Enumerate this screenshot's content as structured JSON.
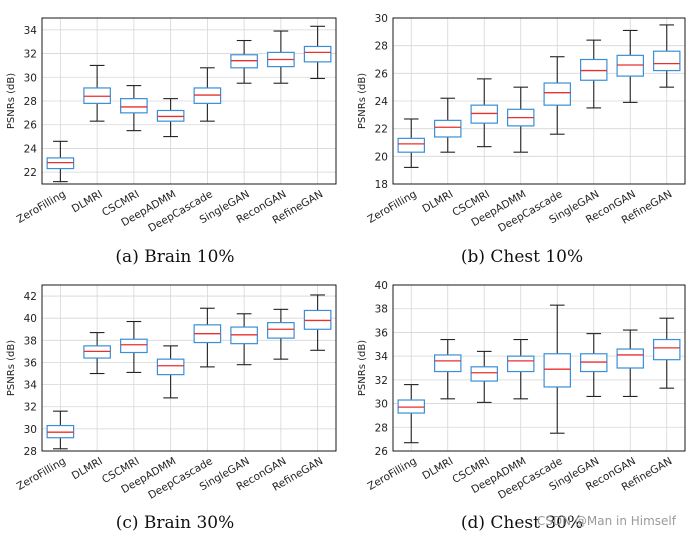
{
  "colors": {
    "box": "#3a8fd8",
    "median": "#e8302f",
    "whisker": "#222222",
    "grid": "#d6d6d6"
  },
  "watermark": "CSDN @Man in Himself",
  "chart_data": [
    {
      "type": "box",
      "caption": "(a) Brain 10%",
      "ylabel": "PSNRs (dB)",
      "ylim": [
        21,
        35
      ],
      "yticks": [
        22,
        24,
        26,
        28,
        30,
        32,
        34
      ],
      "grid": true,
      "categories": [
        "ZeroFilling",
        "DLMRI",
        "CSCMRI",
        "DeepADMM",
        "DeepCascade",
        "SingleGAN",
        "ReconGAN",
        "RefineGAN"
      ],
      "boxes": [
        {
          "min": 21.2,
          "q1": 22.3,
          "median": 22.8,
          "q3": 23.2,
          "max": 24.6
        },
        {
          "min": 26.3,
          "q1": 27.8,
          "median": 28.4,
          "q3": 29.1,
          "max": 31.0
        },
        {
          "min": 25.5,
          "q1": 27.0,
          "median": 27.5,
          "q3": 28.2,
          "max": 29.3
        },
        {
          "min": 25.0,
          "q1": 26.3,
          "median": 26.7,
          "q3": 27.2,
          "max": 28.2
        },
        {
          "min": 26.3,
          "q1": 27.8,
          "median": 28.5,
          "q3": 29.1,
          "max": 30.8
        },
        {
          "min": 29.5,
          "q1": 30.8,
          "median": 31.4,
          "q3": 31.9,
          "max": 33.1
        },
        {
          "min": 29.5,
          "q1": 30.9,
          "median": 31.5,
          "q3": 32.1,
          "max": 33.9
        },
        {
          "min": 29.9,
          "q1": 31.3,
          "median": 32.1,
          "q3": 32.6,
          "max": 34.3
        }
      ]
    },
    {
      "type": "box",
      "caption": "(b) Chest 10%",
      "ylabel": "PSNRs (dB)",
      "ylim": [
        18,
        30
      ],
      "yticks": [
        18,
        20,
        22,
        24,
        26,
        28,
        30
      ],
      "grid": true,
      "categories": [
        "ZeroFilling",
        "DLMRI",
        "CSCMRI",
        "DeepADMM",
        "DeepCascade",
        "SingleGAN",
        "ReconGAN",
        "RefineGAN"
      ],
      "boxes": [
        {
          "min": 19.2,
          "q1": 20.3,
          "median": 20.9,
          "q3": 21.3,
          "max": 22.7
        },
        {
          "min": 20.3,
          "q1": 21.4,
          "median": 22.1,
          "q3": 22.6,
          "max": 24.2
        },
        {
          "min": 20.7,
          "q1": 22.4,
          "median": 23.1,
          "q3": 23.7,
          "max": 25.6
        },
        {
          "min": 20.3,
          "q1": 22.2,
          "median": 22.8,
          "q3": 23.4,
          "max": 25.0
        },
        {
          "min": 21.6,
          "q1": 23.7,
          "median": 24.6,
          "q3": 25.3,
          "max": 27.2
        },
        {
          "min": 23.5,
          "q1": 25.5,
          "median": 26.2,
          "q3": 27.0,
          "max": 28.4
        },
        {
          "min": 23.9,
          "q1": 25.8,
          "median": 26.6,
          "q3": 27.3,
          "max": 29.1
        },
        {
          "min": 25.0,
          "q1": 26.2,
          "median": 26.7,
          "q3": 27.6,
          "max": 29.5
        }
      ]
    },
    {
      "type": "box",
      "caption": "(c) Brain 30%",
      "ylabel": "PSNRs (dB)",
      "ylim": [
        28,
        43
      ],
      "yticks": [
        28,
        30,
        32,
        34,
        36,
        38,
        40,
        42
      ],
      "grid": true,
      "categories": [
        "ZeroFilling",
        "DLMRI",
        "CSCMRI",
        "DeepADMM",
        "DeepCascade",
        "SingleGAN",
        "ReconGAN",
        "RefineGAN"
      ],
      "boxes": [
        {
          "min": 28.2,
          "q1": 29.2,
          "median": 29.7,
          "q3": 30.3,
          "max": 31.6
        },
        {
          "min": 35.0,
          "q1": 36.4,
          "median": 37.0,
          "q3": 37.5,
          "max": 38.7
        },
        {
          "min": 35.1,
          "q1": 36.9,
          "median": 37.6,
          "q3": 38.1,
          "max": 39.7
        },
        {
          "min": 32.8,
          "q1": 34.9,
          "median": 35.7,
          "q3": 36.3,
          "max": 37.5
        },
        {
          "min": 35.6,
          "q1": 37.8,
          "median": 38.6,
          "q3": 39.4,
          "max": 40.9
        },
        {
          "min": 35.8,
          "q1": 37.7,
          "median": 38.5,
          "q3": 39.2,
          "max": 40.4
        },
        {
          "min": 36.3,
          "q1": 38.2,
          "median": 39.0,
          "q3": 39.6,
          "max": 40.8
        },
        {
          "min": 37.1,
          "q1": 39.0,
          "median": 39.8,
          "q3": 40.7,
          "max": 42.1
        }
      ]
    },
    {
      "type": "box",
      "caption": "(d) Chest 30%",
      "ylabel": "PSNRs (dB)",
      "ylim": [
        26,
        40
      ],
      "yticks": [
        26,
        28,
        30,
        32,
        34,
        36,
        38,
        40
      ],
      "grid": true,
      "categories": [
        "ZeroFilling",
        "DLMRI",
        "CSCMRI",
        "DeepADMM",
        "DeepCascade",
        "SingleGAN",
        "ReconGAN",
        "RefineGAN"
      ],
      "boxes": [
        {
          "min": 26.7,
          "q1": 29.2,
          "median": 29.7,
          "q3": 30.3,
          "max": 31.6
        },
        {
          "min": 30.4,
          "q1": 32.7,
          "median": 33.6,
          "q3": 34.1,
          "max": 35.4
        },
        {
          "min": 30.1,
          "q1": 31.9,
          "median": 32.6,
          "q3": 33.1,
          "max": 34.4
        },
        {
          "min": 30.4,
          "q1": 32.7,
          "median": 33.6,
          "q3": 34.0,
          "max": 35.4
        },
        {
          "min": 27.5,
          "q1": 31.4,
          "median": 32.9,
          "q3": 34.2,
          "max": 38.3
        },
        {
          "min": 30.6,
          "q1": 32.7,
          "median": 33.5,
          "q3": 34.2,
          "max": 35.9
        },
        {
          "min": 30.6,
          "q1": 33.0,
          "median": 34.1,
          "q3": 34.6,
          "max": 36.2
        },
        {
          "min": 31.3,
          "q1": 33.7,
          "median": 34.7,
          "q3": 35.4,
          "max": 37.2
        }
      ]
    }
  ]
}
